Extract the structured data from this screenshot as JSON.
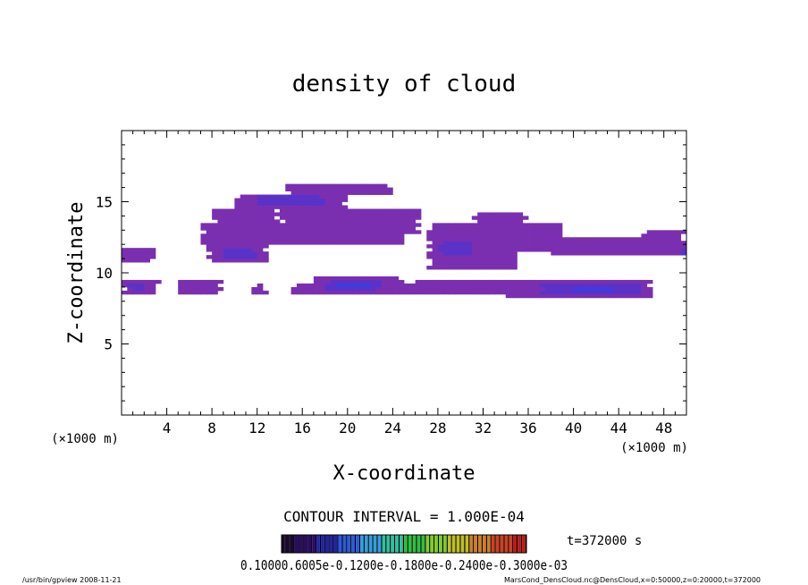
{
  "chart_data": {
    "type": "heatmap",
    "title": "density of cloud",
    "xlabel": "X-coordinate",
    "ylabel": "Z-coordinate",
    "x_unit": "(×1000 m)",
    "y_unit": "(×1000 m)",
    "xlim": [
      0,
      50
    ],
    "ylim": [
      0,
      20
    ],
    "x_ticks": [
      4,
      8,
      12,
      16,
      20,
      24,
      28,
      32,
      36,
      40,
      44,
      48
    ],
    "y_ticks": [
      5,
      10,
      15
    ],
    "contour_interval": "CONTOUR INTERVAL = 1.000E-04",
    "time_label": "t=372000 s",
    "colorbar_labels": "0.10000.6005e-0.1200e-0.1800e-0.2400e-0.3000e-03",
    "colorbar_colors": [
      "#1a0830",
      "#2a0a6a",
      "#2222aa",
      "#2a5ae0",
      "#30a0e0",
      "#30c0a0",
      "#30c040",
      "#80d020",
      "#c0c020",
      "#d08020",
      "#d04020",
      "#c01818"
    ],
    "legend": "none",
    "grid": false,
    "cell_colors": {
      "1": "#7a2fb0",
      "2": "#5a32c8",
      "3": "#3a3ee0",
      "4": "#2a66ff"
    },
    "cell_size": [
      0.5,
      0.25
    ],
    "regions": [
      {
        "x": [
          14.5,
          24
        ],
        "z": [
          15.5,
          16.3
        ],
        "level": 1
      },
      {
        "x": [
          10,
          20
        ],
        "z": [
          14.5,
          15.6
        ],
        "level": 1
      },
      {
        "x": [
          8,
          14
        ],
        "z": [
          13.2,
          14.6
        ],
        "level": 1
      },
      {
        "x": [
          14,
          24
        ],
        "z": [
          13.3,
          14.4
        ],
        "level": 1
      },
      {
        "x": [
          20,
          26.5
        ],
        "z": [
          12.8,
          14.5
        ],
        "level": 1
      },
      {
        "x": [
          7,
          25
        ],
        "z": [
          12.0,
          13.4
        ],
        "level": 1
      },
      {
        "x": [
          7.5,
          13
        ],
        "z": [
          10.8,
          12.2
        ],
        "level": 1
      },
      {
        "x": [
          12,
          18
        ],
        "z": [
          14.8,
          15.6
        ],
        "level": 2
      },
      {
        "x": [
          9,
          12
        ],
        "z": [
          11.1,
          11.8
        ],
        "level": 2
      },
      {
        "x": [
          0,
          3
        ],
        "z": [
          10.8,
          11.8
        ],
        "level": 1
      },
      {
        "x": [
          0,
          3.5
        ],
        "z": [
          8.4,
          9.5
        ],
        "level": 1
      },
      {
        "x": [
          0.5,
          2.5
        ],
        "z": [
          8.7,
          9.2
        ],
        "level": 2
      },
      {
        "x": [
          5,
          9
        ],
        "z": [
          8.5,
          9.5
        ],
        "level": 1
      },
      {
        "x": [
          11.5,
          13
        ],
        "z": [
          8.6,
          9.3
        ],
        "level": 1
      },
      {
        "x": [
          15,
          27
        ],
        "z": [
          8.4,
          9.3
        ],
        "level": 1
      },
      {
        "x": [
          17,
          25
        ],
        "z": [
          9.2,
          9.8
        ],
        "level": 1
      },
      {
        "x": [
          18,
          23
        ],
        "z": [
          8.8,
          9.4
        ],
        "level": 2
      },
      {
        "x": [
          19,
          22
        ],
        "z": [
          9.0,
          9.2
        ],
        "level": 3
      },
      {
        "x": [
          26,
          35
        ],
        "z": [
          8.4,
          9.6
        ],
        "level": 1
      },
      {
        "x": [
          27,
          35
        ],
        "z": [
          10.3,
          13.5
        ],
        "level": 1
      },
      {
        "x": [
          28,
          31
        ],
        "z": [
          11.2,
          12.3
        ],
        "level": 2
      },
      {
        "x": [
          31,
          36
        ],
        "z": [
          13.4,
          14.3
        ],
        "level": 1
      },
      {
        "x": [
          34,
          39
        ],
        "z": [
          11.4,
          13.5
        ],
        "level": 1
      },
      {
        "x": [
          34,
          47
        ],
        "z": [
          8.3,
          9.4
        ],
        "level": 1
      },
      {
        "x": [
          37,
          46
        ],
        "z": [
          8.6,
          9.3
        ],
        "level": 2
      },
      {
        "x": [
          40,
          44
        ],
        "z": [
          8.8,
          9.1
        ],
        "level": 3
      },
      {
        "x": [
          41.5,
          43
        ],
        "z": [
          8.9,
          9.05
        ],
        "level": 4
      },
      {
        "x": [
          38,
          50
        ],
        "z": [
          11.3,
          12.6
        ],
        "level": 1
      },
      {
        "x": [
          46,
          50
        ],
        "z": [
          12.1,
          13.0
        ],
        "level": 1
      },
      {
        "x": [
          49,
          50
        ],
        "z": [
          11.2,
          11.8
        ],
        "level": 2
      }
    ]
  },
  "footer": {
    "left": "/usr/bin/gpview   2008-11-21",
    "right": "MarsCond_DensCloud.nc@DensCloud,x=0:50000,z=0:20000,t=372000"
  }
}
